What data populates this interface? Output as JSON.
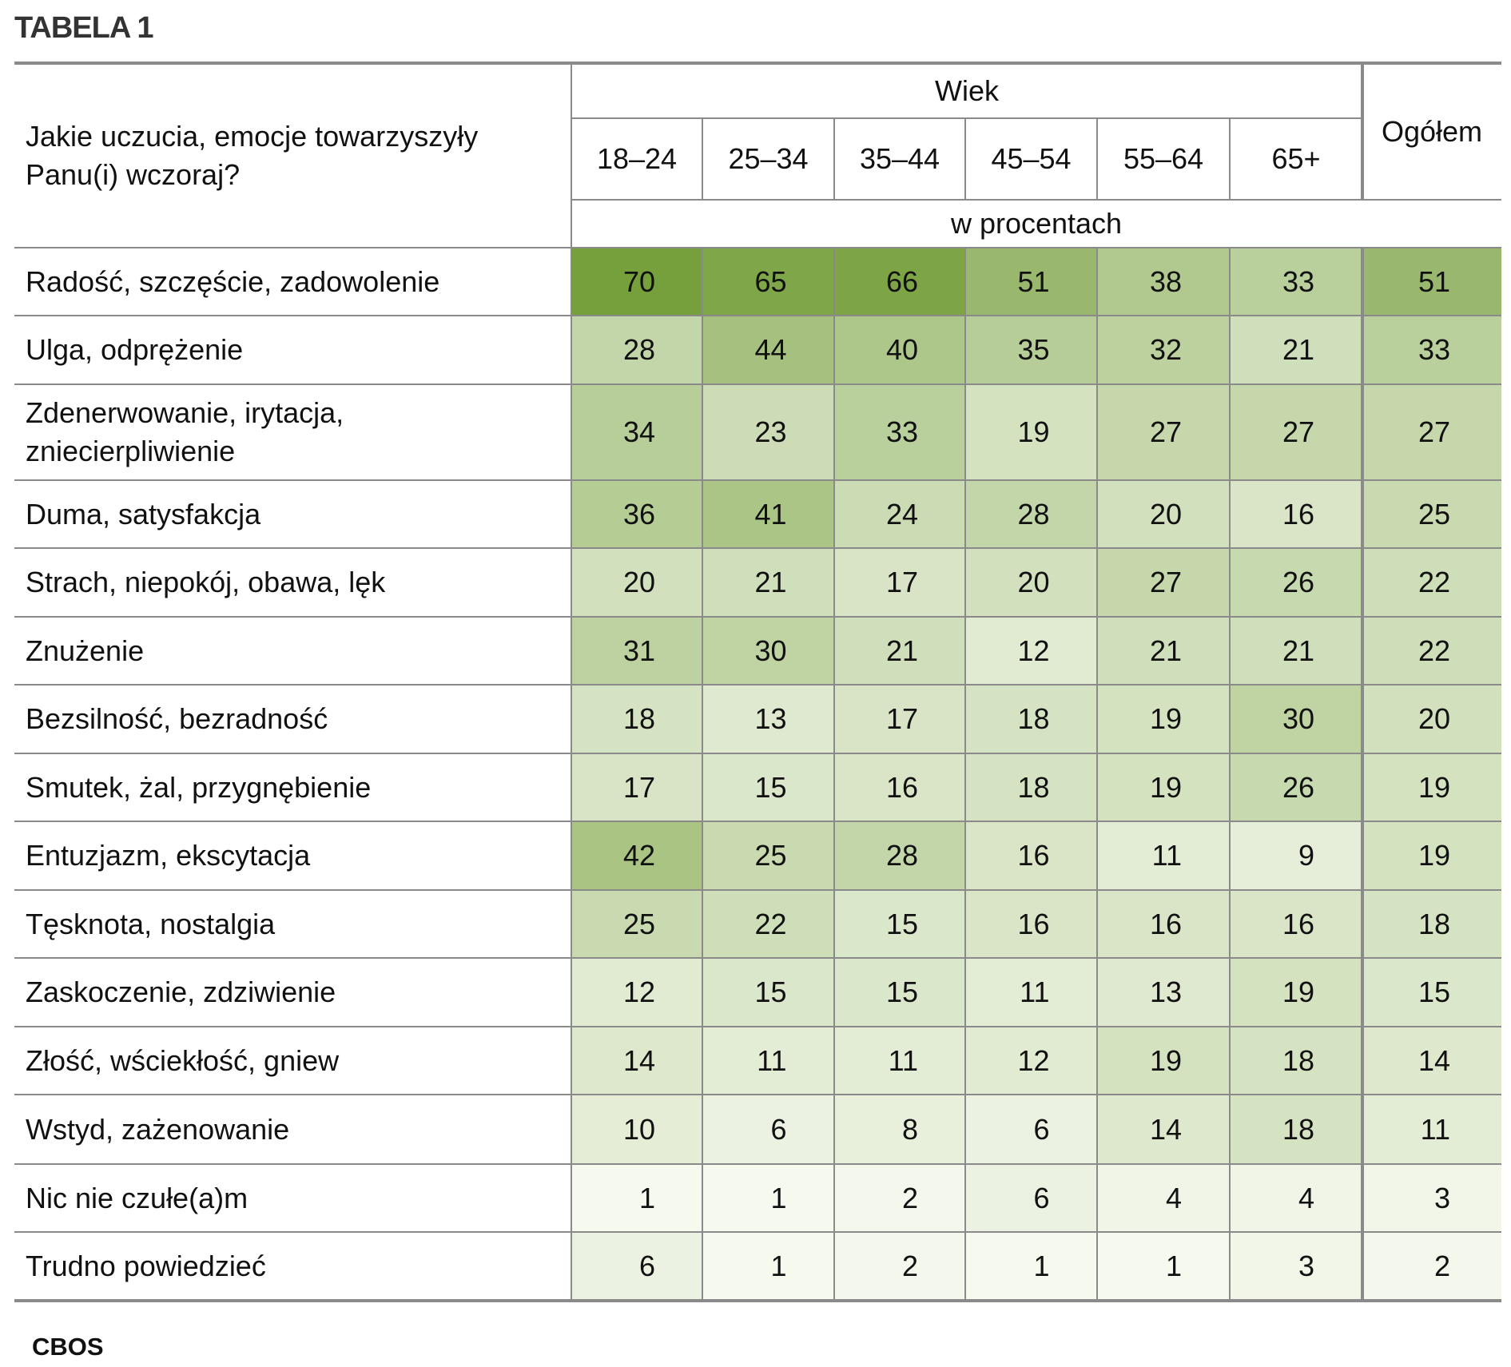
{
  "title": "TABELA 1",
  "header": {
    "question": "Jakie uczucia, emocje towarzyszyły Panu(i) wczoraj?",
    "group_label": "Wiek",
    "age_groups": [
      "18–24",
      "25–34",
      "35–44",
      "45–54",
      "55–64",
      "65+"
    ],
    "total_label": "Ogółem",
    "unit_label": "w procentach"
  },
  "rows": [
    {
      "label": "Radość, szczęście, zadowolenie",
      "values": [
        70,
        65,
        66,
        51,
        38,
        33,
        51
      ]
    },
    {
      "label": "Ulga, odprężenie",
      "values": [
        28,
        44,
        40,
        35,
        32,
        21,
        33
      ]
    },
    {
      "label": "Zdenerwowanie, irytacja, zniecierpliwienie",
      "values": [
        34,
        23,
        33,
        19,
        27,
        27,
        27
      ]
    },
    {
      "label": "Duma, satysfakcja",
      "values": [
        36,
        41,
        24,
        28,
        20,
        16,
        25
      ]
    },
    {
      "label": "Strach, niepokój, obawa, lęk",
      "values": [
        20,
        21,
        17,
        20,
        27,
        26,
        22
      ]
    },
    {
      "label": "Znużenie",
      "values": [
        31,
        30,
        21,
        12,
        21,
        21,
        22
      ]
    },
    {
      "label": "Bezsilność, bezradność",
      "values": [
        18,
        13,
        17,
        18,
        19,
        30,
        20
      ]
    },
    {
      "label": "Smutek, żal, przygnębienie",
      "values": [
        17,
        15,
        16,
        18,
        19,
        26,
        19
      ]
    },
    {
      "label": "Entuzjazm, ekscytacja",
      "values": [
        42,
        25,
        28,
        16,
        11,
        9,
        19
      ]
    },
    {
      "label": "Tęsknota, nostalgia",
      "values": [
        25,
        22,
        15,
        16,
        16,
        16,
        18
      ]
    },
    {
      "label": "Zaskoczenie, zdziwienie",
      "values": [
        12,
        15,
        15,
        11,
        13,
        19,
        15
      ]
    },
    {
      "label": "Złość, wściekłość, gniew",
      "values": [
        14,
        11,
        11,
        12,
        19,
        18,
        14
      ]
    },
    {
      "label": "Wstyd, zażenowanie",
      "values": [
        10,
        6,
        8,
        6,
        14,
        18,
        11
      ]
    },
    {
      "label": "Nic nie czułe(a)m",
      "values": [
        1,
        1,
        2,
        6,
        4,
        4,
        3
      ]
    },
    {
      "label": "Trudno powiedzieć",
      "values": [
        6,
        1,
        2,
        1,
        1,
        3,
        2
      ]
    }
  ],
  "source": "CBOS",
  "colors": {
    "heat_low": "#f7faf1",
    "heat_high": "#76a03c",
    "rule": "#8a8a8a"
  }
}
